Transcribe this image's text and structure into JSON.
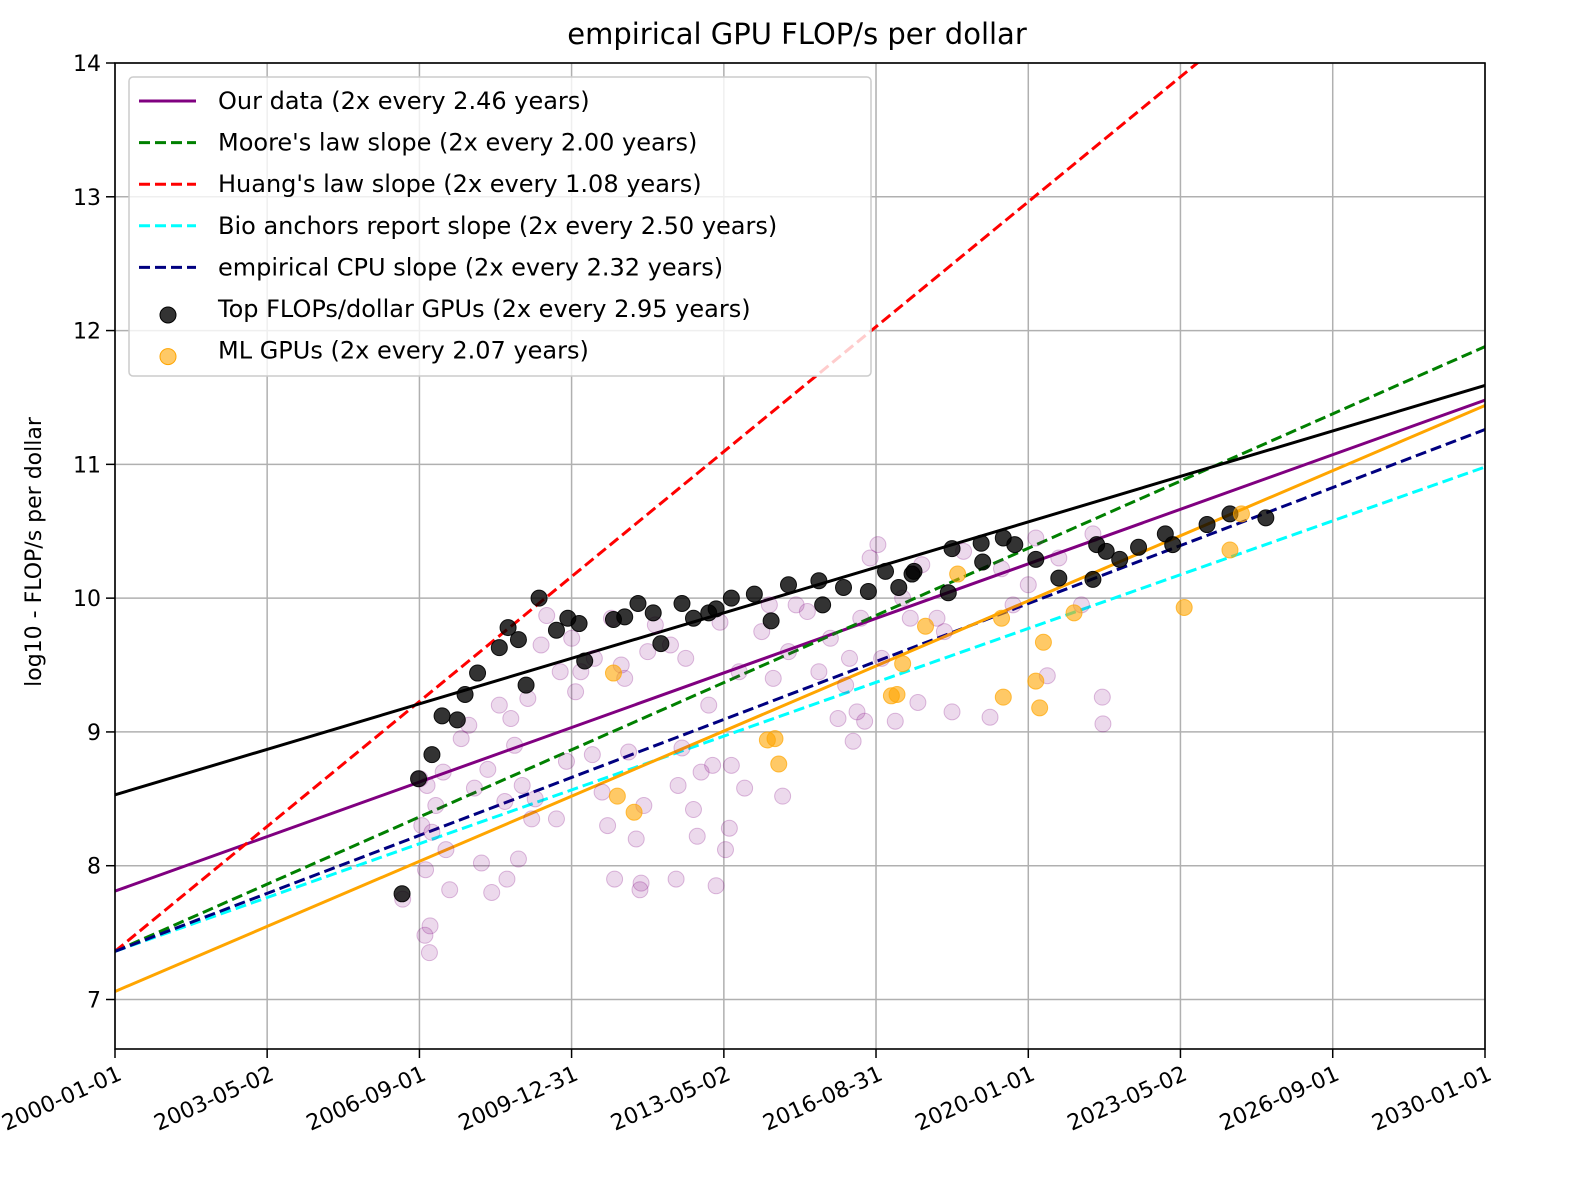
{
  "chart_data": {
    "type": "scatter",
    "title": "empirical GPU FLOP/s per dollar",
    "xlabel": "",
    "ylabel": "log10 - FLOP/s per dollar",
    "x_type": "date",
    "xlim": [
      "2000-01-01",
      "2030-01-01"
    ],
    "ylim": [
      6.63,
      14
    ],
    "x_ticks": [
      "2000-01-01",
      "2003-05-02",
      "2006-09-01",
      "2009-12-31",
      "2013-05-02",
      "2016-08-31",
      "2020-01-01",
      "2023-05-02",
      "2026-09-01",
      "2030-01-01"
    ],
    "y_ticks": [
      7,
      8,
      9,
      10,
      11,
      12,
      13,
      14
    ],
    "grid": true,
    "legend_position": "top-left",
    "lines": [
      {
        "name": "Our data (2x every 2.46 years)",
        "color": "#800080",
        "style": "solid",
        "points": [
          [
            "2000-01-01",
            7.81
          ],
          [
            "2030-01-01",
            11.48
          ]
        ]
      },
      {
        "name": "Moore's law slope (2x every 2.00 years)",
        "color": "#008000",
        "style": "dashed",
        "points": [
          [
            "2000-01-01",
            7.36
          ],
          [
            "2030-01-01",
            11.88
          ]
        ]
      },
      {
        "name": "Huang's law slope (2x every 1.08 years)",
        "color": "#ff0000",
        "style": "dashed",
        "points": [
          [
            "2000-01-01",
            7.36
          ],
          [
            "2024-06-01",
            14.2
          ]
        ]
      },
      {
        "name": "Bio anchors report slope (2x every 2.50 years)",
        "color": "#00ffff",
        "style": "dashed",
        "points": [
          [
            "2000-01-01",
            7.36
          ],
          [
            "2030-01-01",
            10.98
          ]
        ]
      },
      {
        "name": "empirical CPU slope (2x every 2.32 years)",
        "color": "#000080",
        "style": "dashed",
        "points": [
          [
            "2000-01-01",
            7.36
          ],
          [
            "2030-01-01",
            11.26
          ]
        ]
      },
      {
        "name": "",
        "color": "#000000",
        "style": "solid",
        "points": [
          [
            "2000-01-01",
            8.53
          ],
          [
            "2030-01-01",
            11.59
          ]
        ]
      },
      {
        "name": "",
        "color": "#ffa500",
        "style": "solid",
        "points": [
          [
            "2000-01-01",
            7.06
          ],
          [
            "2030-01-01",
            11.44
          ]
        ]
      }
    ],
    "scatter_series": [
      {
        "name": "",
        "color": "#800080",
        "opacity": 0.15,
        "points": [
          [
            "2006-04-20",
            7.75
          ],
          [
            "2006-10-15",
            7.48
          ],
          [
            "2006-11-20",
            7.35
          ],
          [
            "2006-11-25",
            7.55
          ],
          [
            "2006-09-05",
            8.65
          ],
          [
            "2006-09-20",
            8.3
          ],
          [
            "2006-10-20",
            7.97
          ],
          [
            "2006-11-01",
            8.6
          ],
          [
            "2006-12-10",
            8.25
          ],
          [
            "2007-01-10",
            8.45
          ],
          [
            "2007-03-10",
            8.7
          ],
          [
            "2007-04-01",
            8.12
          ],
          [
            "2007-05-01",
            7.82
          ],
          [
            "2007-08-01",
            8.95
          ],
          [
            "2007-10-01",
            9.05
          ],
          [
            "2007-11-15",
            8.58
          ],
          [
            "2008-01-10",
            8.02
          ],
          [
            "2008-03-01",
            8.72
          ],
          [
            "2008-04-01",
            7.8
          ],
          [
            "2008-06-01",
            9.2
          ],
          [
            "2008-07-15",
            8.48
          ],
          [
            "2008-08-01",
            7.9
          ],
          [
            "2008-09-01",
            9.1
          ],
          [
            "2008-10-01",
            8.9
          ],
          [
            "2008-11-01",
            8.05
          ],
          [
            "2008-12-01",
            8.6
          ],
          [
            "2009-01-15",
            9.25
          ],
          [
            "2009-02-15",
            8.35
          ],
          [
            "2009-03-15",
            8.5
          ],
          [
            "2009-05-01",
            9.65
          ],
          [
            "2009-06-15",
            9.87
          ],
          [
            "2009-09-01",
            8.35
          ],
          [
            "2009-10-01",
            9.45
          ],
          [
            "2009-11-20",
            8.78
          ],
          [
            "2010-01-01",
            9.7
          ],
          [
            "2010-02-01",
            9.3
          ],
          [
            "2010-03-15",
            9.45
          ],
          [
            "2010-06-15",
            8.83
          ],
          [
            "2010-07-01",
            9.55
          ],
          [
            "2010-09-01",
            8.55
          ],
          [
            "2010-10-15",
            8.3
          ],
          [
            "2010-11-15",
            9.85
          ],
          [
            "2010-12-10",
            7.9
          ],
          [
            "2011-02-01",
            9.5
          ],
          [
            "2011-03-01",
            9.4
          ],
          [
            "2011-04-01",
            8.85
          ],
          [
            "2011-06-01",
            8.2
          ],
          [
            "2011-07-01",
            7.82
          ],
          [
            "2011-07-10",
            7.87
          ],
          [
            "2011-08-01",
            8.45
          ],
          [
            "2011-09-01",
            9.6
          ],
          [
            "2011-11-01",
            9.8
          ],
          [
            "2012-03-01",
            9.65
          ],
          [
            "2012-04-15",
            7.9
          ],
          [
            "2012-05-01",
            8.6
          ],
          [
            "2012-06-01",
            8.88
          ],
          [
            "2012-07-01",
            9.55
          ],
          [
            "2012-09-01",
            8.42
          ],
          [
            "2012-10-01",
            8.22
          ],
          [
            "2012-11-01",
            8.7
          ],
          [
            "2013-01-01",
            9.2
          ],
          [
            "2013-02-01",
            8.75
          ],
          [
            "2013-03-01",
            7.85
          ],
          [
            "2013-04-01",
            9.82
          ],
          [
            "2013-05-15",
            8.12
          ],
          [
            "2013-06-15",
            8.28
          ],
          [
            "2013-07-01",
            8.75
          ],
          [
            "2013-09-01",
            9.45
          ],
          [
            "2013-10-15",
            8.58
          ],
          [
            "2014-03-01",
            9.75
          ],
          [
            "2014-05-01",
            9.95
          ],
          [
            "2014-06-01",
            9.4
          ],
          [
            "2014-08-15",
            8.52
          ],
          [
            "2014-10-01",
            9.6
          ],
          [
            "2014-12-01",
            9.95
          ],
          [
            "2015-03-01",
            9.9
          ],
          [
            "2015-06-01",
            9.45
          ],
          [
            "2015-09-01",
            9.7
          ],
          [
            "2015-11-01",
            9.1
          ],
          [
            "2016-01-01",
            9.35
          ],
          [
            "2016-02-01",
            9.55
          ],
          [
            "2016-03-01",
            8.93
          ],
          [
            "2016-04-01",
            9.15
          ],
          [
            "2016-05-01",
            9.85
          ],
          [
            "2016-06-01",
            9.08
          ],
          [
            "2016-07-15",
            10.3
          ],
          [
            "2016-09-15",
            10.4
          ],
          [
            "2016-10-15",
            9.55
          ],
          [
            "2017-02-01",
            9.08
          ],
          [
            "2017-04-01",
            10.0
          ],
          [
            "2017-06-01",
            9.85
          ],
          [
            "2017-08-01",
            9.22
          ],
          [
            "2017-09-01",
            10.25
          ],
          [
            "2018-01-01",
            9.85
          ],
          [
            "2018-03-01",
            9.75
          ],
          [
            "2018-05-01",
            9.15
          ],
          [
            "2018-08-01",
            10.35
          ],
          [
            "2019-03-01",
            9.11
          ],
          [
            "2019-06-01",
            10.22
          ],
          [
            "2019-09-01",
            9.95
          ],
          [
            "2020-01-01",
            10.1
          ],
          [
            "2020-03-01",
            10.45
          ],
          [
            "2020-06-01",
            9.42
          ],
          [
            "2020-09-01",
            10.3
          ],
          [
            "2021-03-01",
            9.95
          ],
          [
            "2021-06-01",
            10.48
          ],
          [
            "2021-08-15",
            9.26
          ],
          [
            "2021-08-20",
            9.06
          ]
        ]
      },
      {
        "name": "Top FLOPs/dollar GPUs (2x every 2.95 years)",
        "color": "#000000",
        "opacity": 0.8,
        "points": [
          [
            "2006-04-15",
            7.79
          ],
          [
            "2006-08-25",
            8.65
          ],
          [
            "2006-12-10",
            8.83
          ],
          [
            "2007-03-01",
            9.12
          ],
          [
            "2007-07-01",
            9.09
          ],
          [
            "2007-09-01",
            9.28
          ],
          [
            "2007-12-10",
            9.44
          ],
          [
            "2008-06-01",
            9.63
          ],
          [
            "2008-08-10",
            9.78
          ],
          [
            "2008-11-01",
            9.69
          ],
          [
            "2009-01-01",
            9.35
          ],
          [
            "2009-04-15",
            10.0
          ],
          [
            "2009-09-01",
            9.76
          ],
          [
            "2009-12-01",
            9.85
          ],
          [
            "2010-03-01",
            9.81
          ],
          [
            "2010-04-15",
            9.53
          ],
          [
            "2010-12-01",
            9.84
          ],
          [
            "2011-03-01",
            9.86
          ],
          [
            "2011-06-15",
            9.96
          ],
          [
            "2011-10-15",
            9.89
          ],
          [
            "2011-12-15",
            9.66
          ],
          [
            "2012-06-01",
            9.96
          ],
          [
            "2012-09-01",
            9.85
          ],
          [
            "2013-01-01",
            9.89
          ],
          [
            "2013-03-01",
            9.92
          ],
          [
            "2013-07-01",
            10.0
          ],
          [
            "2014-01-01",
            10.03
          ],
          [
            "2014-05-15",
            9.83
          ],
          [
            "2014-10-01",
            10.1
          ],
          [
            "2015-06-01",
            10.13
          ],
          [
            "2015-07-01",
            9.95
          ],
          [
            "2015-12-15",
            10.08
          ],
          [
            "2016-07-01",
            10.05
          ],
          [
            "2016-11-15",
            10.2
          ],
          [
            "2017-03-01",
            10.08
          ],
          [
            "2017-07-01",
            10.2
          ],
          [
            "2018-04-01",
            10.04
          ],
          [
            "2018-05-01",
            10.37
          ],
          [
            "2018-12-20",
            10.41
          ],
          [
            "2019-01-01",
            10.27
          ],
          [
            "2019-06-15",
            10.45
          ],
          [
            "2019-09-15",
            10.4
          ],
          [
            "2020-03-01",
            10.29
          ],
          [
            "2020-09-01",
            10.15
          ],
          [
            "2021-06-01",
            10.14
          ],
          [
            "2021-07-01",
            10.4
          ],
          [
            "2021-09-15",
            10.35
          ],
          [
            "2022-01-01",
            10.29
          ],
          [
            "2022-06-01",
            10.38
          ],
          [
            "2023-01-01",
            10.48
          ],
          [
            "2023-03-01",
            10.4
          ],
          [
            "2023-12-01",
            10.55
          ],
          [
            "2024-06-01",
            10.63
          ],
          [
            "2025-03-15",
            10.6
          ],
          [
            "2017-06-15",
            10.18
          ]
        ]
      },
      {
        "name": "ML GPUs (2x every 2.07 years)",
        "color": "#ffa500",
        "opacity": 0.6,
        "points": [
          [
            "2010-12-01",
            9.44
          ],
          [
            "2011-01-01",
            8.52
          ],
          [
            "2011-05-15",
            8.4
          ],
          [
            "2014-04-15",
            8.94
          ],
          [
            "2014-06-15",
            8.95
          ],
          [
            "2014-07-15",
            8.76
          ],
          [
            "2017-01-01",
            9.27
          ],
          [
            "2017-02-15",
            9.28
          ],
          [
            "2017-04-01",
            9.51
          ],
          [
            "2017-10-01",
            9.79
          ],
          [
            "2018-06-15",
            10.18
          ],
          [
            "2019-06-15",
            9.26
          ],
          [
            "2020-03-01",
            9.38
          ],
          [
            "2020-04-01",
            9.18
          ],
          [
            "2020-05-01",
            9.67
          ],
          [
            "2021-01-01",
            9.89
          ],
          [
            "2023-06-01",
            9.93
          ],
          [
            "2024-06-01",
            10.36
          ],
          [
            "2024-09-01",
            10.63
          ],
          [
            "2019-06-01",
            9.85
          ]
        ]
      }
    ]
  }
}
